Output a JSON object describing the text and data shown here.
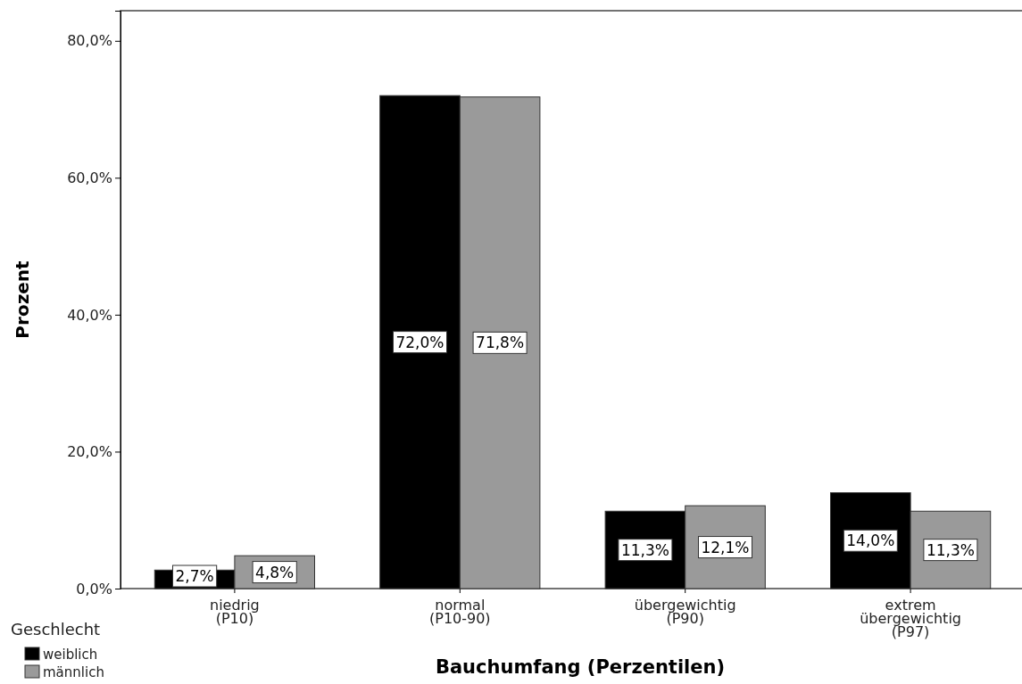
{
  "chart_data": {
    "type": "bar",
    "ylabel": "Prozent",
    "xlabel": "Bauchumfang (Perzentilen)",
    "legend_title": "Geschlecht",
    "categories": [
      "niedrig (P10)",
      "normal (P10-90)",
      "übergewichtig (P90)",
      "extrem übergewichtig (P97)"
    ],
    "series": [
      {
        "name": "weiblich",
        "color": "#000000",
        "values": [
          2.7,
          72.0,
          11.3,
          14.0
        ],
        "value_labels": [
          "2,7%",
          "72,0%",
          "11,3%",
          "14,0%"
        ]
      },
      {
        "name": "männlich",
        "color": "#9a9a9a",
        "values": [
          4.8,
          71.8,
          12.1,
          11.3
        ],
        "value_labels": [
          "4,8%",
          "71,8%",
          "12,1%",
          "11,3%"
        ]
      }
    ],
    "ylim": [
      0,
      84.4
    ],
    "yticks": [
      {
        "value": 0,
        "label": "0,0%"
      },
      {
        "value": 20,
        "label": "20,0%"
      },
      {
        "value": 40,
        "label": "40,0%"
      },
      {
        "value": 60,
        "label": "60,0%"
      },
      {
        "value": 80,
        "label": "80,0%"
      }
    ],
    "grid": false,
    "legend": "bottom left"
  }
}
